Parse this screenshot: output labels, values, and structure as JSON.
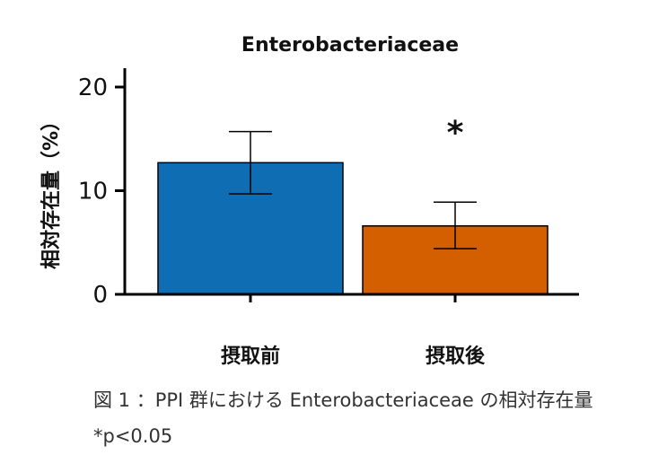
{
  "chart_data": {
    "type": "bar",
    "title": "Enterobacteriaceae",
    "ylabel": "相対存在量（%）",
    "xlabel": "",
    "categories": [
      "摂取前",
      "摂取後"
    ],
    "values": [
      12.7,
      6.6
    ],
    "error_upper": [
      15.7,
      8.9
    ],
    "error_lower": [
      9.7,
      4.4
    ],
    "bar_colors": [
      "#0f6db3",
      "#d35f00"
    ],
    "ylim": [
      0,
      20
    ],
    "yticks": [
      "0",
      "10",
      "20"
    ],
    "grid": false,
    "annotations": [
      {
        "category": "摂取後",
        "text": "*"
      }
    ]
  },
  "captions": {
    "figure": "図 1 ：PPI 群における Enterobacteriaceae の相対存在量",
    "note": "*p<0.05"
  }
}
